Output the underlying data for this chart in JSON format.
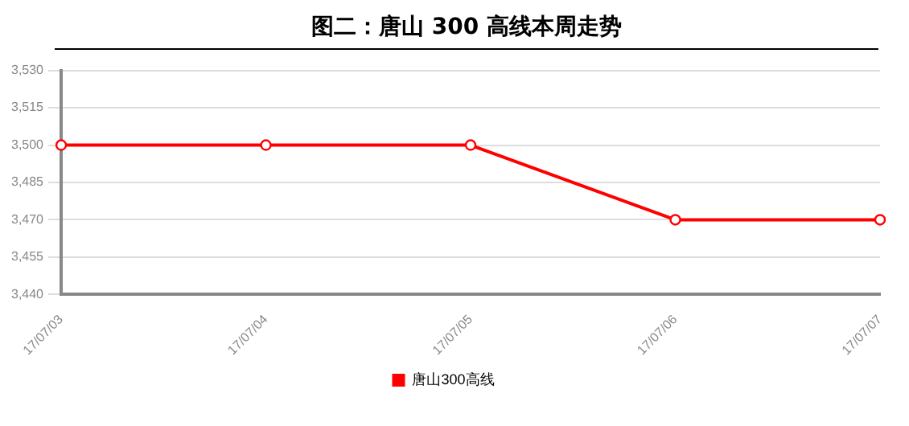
{
  "chart_data": {
    "type": "line",
    "title": "图二：唐山 300 高线本周走势",
    "categories": [
      "17/07/03",
      "17/07/04",
      "17/07/05",
      "17/07/06",
      "17/07/07"
    ],
    "series": [
      {
        "name": "唐山300高线",
        "color": "#ff0000",
        "values": [
          3500,
          3500,
          3500,
          3470,
          3470
        ]
      }
    ],
    "ylim": [
      3440,
      3530
    ],
    "yticks": [
      {
        "value": 3440,
        "label": "3,440"
      },
      {
        "value": 3455,
        "label": "3,455"
      },
      {
        "value": 3470,
        "label": "3,470"
      },
      {
        "value": 3485,
        "label": "3,485"
      },
      {
        "value": 3500,
        "label": "3,500"
      },
      {
        "value": 3515,
        "label": "3,515"
      },
      {
        "value": 3530,
        "label": "3,530"
      }
    ],
    "grid": "y",
    "legend": "bottom",
    "marker": "circle",
    "line_style": "solid"
  }
}
